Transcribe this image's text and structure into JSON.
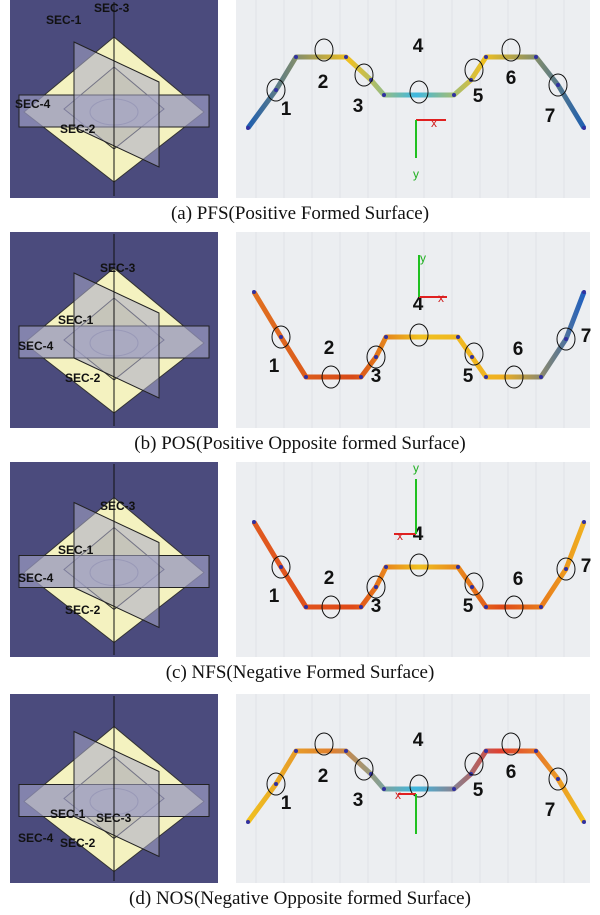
{
  "figure": {
    "panels": [
      {
        "caption": "(a)  PFS(Positive  Formed  Surface)",
        "section_labels": [
          "SEC-1",
          "SEC-2",
          "SEC-3",
          "SEC-4"
        ],
        "point_labels": [
          "1",
          "2",
          "3",
          "4",
          "5",
          "6",
          "7"
        ],
        "axis_labels": [
          "x",
          "y"
        ]
      },
      {
        "caption": "(b)  POS(Positive  Opposite  formed  Surface)",
        "section_labels": [
          "SEC-1",
          "SEC-2",
          "SEC-3",
          "SEC-4"
        ],
        "point_labels": [
          "1",
          "2",
          "3",
          "4",
          "5",
          "6",
          "7"
        ],
        "axis_labels": [
          "x",
          "y"
        ]
      },
      {
        "caption": "(c)  NFS(Negative  Formed  Surface)",
        "section_labels": [
          "SEC-1",
          "SEC-2",
          "SEC-3",
          "SEC-4"
        ],
        "point_labels": [
          "1",
          "2",
          "3",
          "4",
          "5",
          "6",
          "7"
        ],
        "axis_labels": [
          "x",
          "y"
        ]
      },
      {
        "caption": "(d)  NOS(Negative  Opposite  formed  Surface)",
        "section_labels": [
          "SEC-1",
          "SEC-2",
          "SEC-3",
          "SEC-4"
        ],
        "point_labels": [
          "1",
          "2",
          "3",
          "4",
          "5",
          "6",
          "7"
        ],
        "axis_labels": [
          "x"
        ]
      }
    ]
  }
}
